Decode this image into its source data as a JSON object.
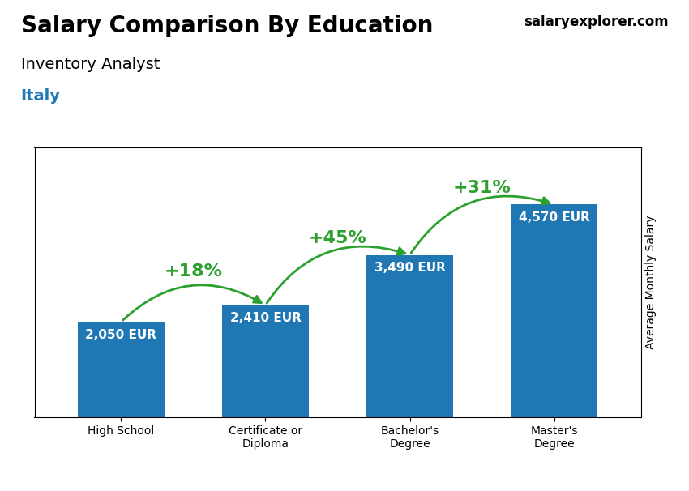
{
  "chart_data": {
    "type": "bar",
    "title": "Salary Comparison By Education",
    "subtitle": "Inventory Analyst",
    "ylabel": "Average Monthly Salary",
    "categories": [
      "High School",
      "Certificate or\nDiploma",
      "Bachelor's\nDegree",
      "Master's\nDegree"
    ],
    "values": [
      2050,
      2410,
      3490,
      4570
    ],
    "value_labels": [
      "2,050 EUR",
      "2,410 EUR",
      "3,490 EUR",
      "4,570 EUR"
    ],
    "data_labels": true,
    "ylim": [
      0,
      5800
    ],
    "yticks": [],
    "tick_labels": "x",
    "annotations": [
      {
        "text": "Italy"
      },
      {
        "text": "salaryexplorer.com"
      },
      {
        "text": "+18%",
        "from": "High School",
        "to": "Certificate or\nDiploma"
      },
      {
        "text": "+45%",
        "from": "Certificate or\nDiploma",
        "to": "Bachelor's\nDegree"
      },
      {
        "text": "+31%",
        "from": "Bachelor's\nDegree",
        "to": "Master's\nDegree"
      }
    ]
  }
}
